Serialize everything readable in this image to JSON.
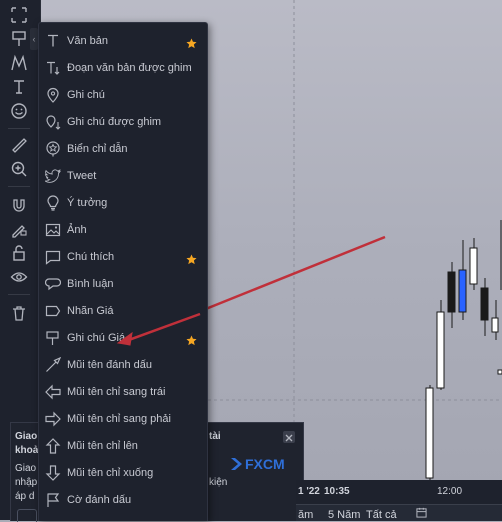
{
  "drawing_menu": {
    "items": [
      {
        "label": "Văn bản",
        "icon": "text-icon",
        "starred": true
      },
      {
        "label": "Đoạn văn bản được ghim",
        "icon": "anchored-text-icon",
        "starred": false
      },
      {
        "label": "Ghi chú",
        "icon": "note-pin-icon",
        "starred": false
      },
      {
        "label": "Ghi chú được ghim",
        "icon": "anchored-note-icon",
        "starred": false
      },
      {
        "label": "Biển chỉ dẫn",
        "icon": "signpost-icon",
        "starred": false
      },
      {
        "label": "Tweet",
        "icon": "twitter-bird-icon",
        "starred": false
      },
      {
        "label": "Ý tưởng",
        "icon": "lightbulb-icon",
        "starred": false
      },
      {
        "label": "Ảnh",
        "icon": "image-icon",
        "starred": false
      },
      {
        "label": "Chú thích",
        "icon": "callout-icon",
        "starred": true
      },
      {
        "label": "Bình luận",
        "icon": "comment-icon",
        "starred": false
      },
      {
        "label": "Nhãn Giá",
        "icon": "price-label-icon",
        "starred": false
      },
      {
        "label": "Ghi chú Giá",
        "icon": "price-note-icon",
        "starred": true
      },
      {
        "label": "Mũi tên đánh dấu",
        "icon": "arrow-marker-icon",
        "starred": false
      },
      {
        "label": "Mũi tên chỉ sang trái",
        "icon": "arrow-left-icon",
        "starred": false
      },
      {
        "label": "Mũi tên chỉ sang phải",
        "icon": "arrow-right-icon",
        "starred": false
      },
      {
        "label": "Mũi tên chỉ lên",
        "icon": "arrow-up-icon",
        "starred": false
      },
      {
        "label": "Mũi tên chỉ xuống",
        "icon": "arrow-down-icon",
        "starred": false
      },
      {
        "label": "Cờ đánh dấu",
        "icon": "flag-icon",
        "starred": false
      }
    ]
  },
  "ad": {
    "line1_left": "Giao",
    "line1_right": "tài",
    "line2_left": "khoả",
    "line3_left": "Giao",
    "line4_left": "nhập",
    "line4_right": "kiện",
    "line5_left": "áp d",
    "logo": "FXCM"
  },
  "time_axis": {
    "date_label": "1 '22",
    "time_label": "10:35",
    "tick_label": "12:00"
  },
  "bottom_bar": {
    "range_label": "5 Năm",
    "all_label": "Tất cả",
    "left_partial": "ăm"
  },
  "colors": {
    "toolbar_bg": "#1e222d",
    "menu_text": "#c8cad2",
    "star": "#f6a723",
    "arrow": "#c0303a",
    "candle_blue": "#2962ff"
  }
}
